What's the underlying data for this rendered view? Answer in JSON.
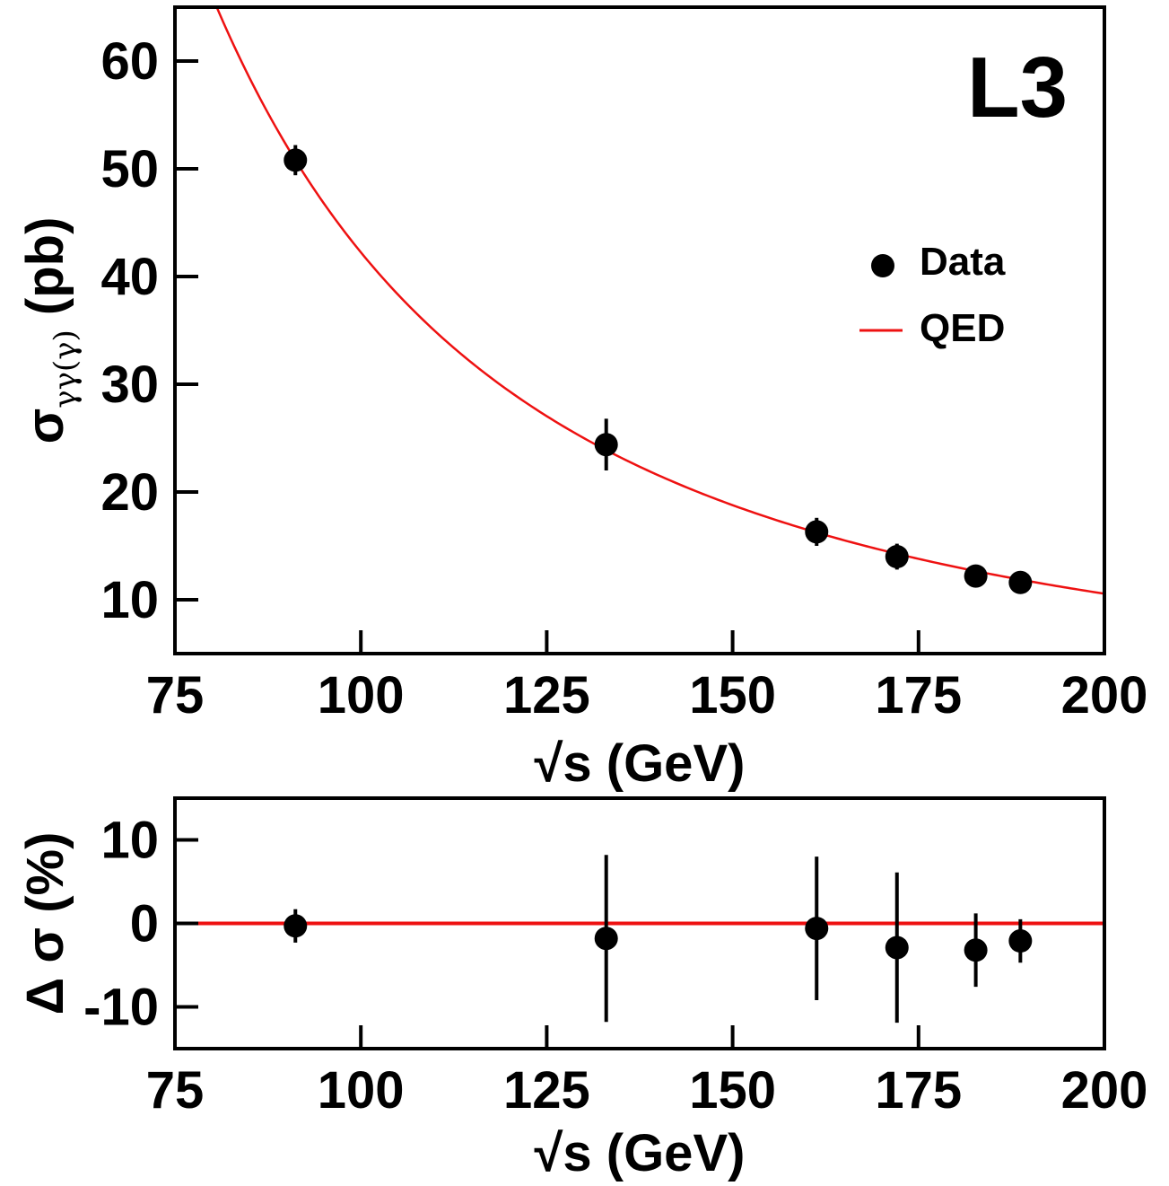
{
  "experiment_label": "L3",
  "chart_data": [
    {
      "type": "scatter",
      "panel": "top",
      "xlabel": "√s (GeV)",
      "ylabel": "σγγ(γ) (pb)",
      "ylabel_parts": {
        "main": "σ",
        "sub": "γγ(γ)",
        "unit": "(pb)"
      },
      "xlabel_parts": {
        "root": "√s",
        "unit": "(GeV)"
      },
      "xlim": [
        75,
        200
      ],
      "ylim": [
        5,
        65
      ],
      "xticks": [
        75,
        100,
        125,
        150,
        175,
        200
      ],
      "yticks": [
        10,
        20,
        30,
        40,
        50,
        60
      ],
      "legend_position": "right",
      "series": [
        {
          "name": "Data",
          "kind": "points",
          "color": "#000000",
          "x": [
            91.2,
            133,
            161.3,
            172.1,
            182.7,
            188.7
          ],
          "y": [
            50.8,
            24.4,
            16.3,
            14.0,
            12.2,
            11.6
          ],
          "yerr": [
            1.4,
            2.4,
            1.3,
            1.2,
            0.6,
            0.5
          ]
        },
        {
          "name": "QED",
          "kind": "line",
          "color": "#ee1111",
          "formula": "y = 422500 / x^2",
          "x": [
            80,
            85,
            90,
            95,
            100,
            110,
            120,
            130,
            140,
            150,
            160,
            170,
            180,
            190,
            200
          ],
          "y": [
            66.0,
            58.5,
            52.2,
            46.8,
            42.3,
            34.9,
            29.3,
            25.0,
            21.6,
            18.8,
            16.5,
            14.6,
            13.0,
            11.7,
            10.6
          ]
        }
      ]
    },
    {
      "type": "scatter",
      "panel": "bottom",
      "xlabel": "√s (GeV)",
      "ylabel": "Δ σ (%)",
      "xlabel_parts": {
        "root": "√s",
        "unit": "(GeV)"
      },
      "xlim": [
        75,
        200
      ],
      "ylim": [
        -15,
        15
      ],
      "xticks": [
        75,
        100,
        125,
        150,
        175,
        200
      ],
      "yticks": [
        -10,
        0,
        10
      ],
      "reference_line": {
        "y": 0,
        "color": "#ee1111"
      },
      "series": [
        {
          "name": "Data",
          "kind": "points",
          "color": "#000000",
          "x": [
            91.2,
            133,
            161.3,
            172.1,
            182.7,
            188.7
          ],
          "y": [
            -0.3,
            -1.8,
            -0.6,
            -2.9,
            -3.2,
            -2.1
          ],
          "yerr": [
            2.0,
            10.0,
            8.6,
            9.0,
            4.4,
            2.6
          ]
        }
      ]
    }
  ]
}
